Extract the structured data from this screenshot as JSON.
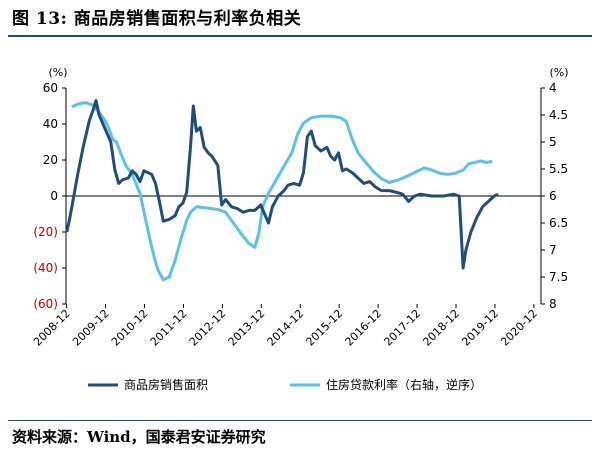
{
  "header": {
    "title": "图 13:  商品房销售面积与利率负相关"
  },
  "footer": {
    "source": "资料来源：Wind，国泰君安证券研究"
  },
  "colors": {
    "series1": "#1f4e79",
    "series2": "#5bc0eb",
    "negative_tick": "#c00000"
  },
  "chart_data": {
    "type": "line",
    "left_axis": {
      "unit": "(%)",
      "ylim": [
        -60,
        60
      ],
      "ticks": [
        "60",
        "40",
        "20",
        "0",
        "(20)",
        "(40)",
        "(60)"
      ],
      "tick_values": [
        60,
        40,
        20,
        0,
        -20,
        -40,
        -60
      ]
    },
    "right_axis": {
      "unit": "(%)",
      "ylim": [
        4,
        8
      ],
      "inverted": true,
      "ticks": [
        "4",
        "4.5",
        "5",
        "5.5",
        "6",
        "6.5",
        "7",
        "7.5",
        "8"
      ],
      "tick_values": [
        4,
        4.5,
        5,
        5.5,
        6,
        6.5,
        7,
        7.5,
        8
      ]
    },
    "x_ticks": [
      "2008-12",
      "2009-12",
      "2010-12",
      "2011-12",
      "2012-12",
      "2013-12",
      "2014-12",
      "2015-12",
      "2016-12",
      "2017-12",
      "2018-12",
      "2019-12",
      "2020-12"
    ],
    "x_range": [
      2008.9,
      2021.1
    ],
    "series": [
      {
        "name": "商品房销售面积",
        "axis": "left",
        "points": [
          [
            2008.92,
            -20
          ],
          [
            2009.0,
            -12
          ],
          [
            2009.1,
            0
          ],
          [
            2009.2,
            12
          ],
          [
            2009.35,
            28
          ],
          [
            2009.5,
            42
          ],
          [
            2009.6,
            48
          ],
          [
            2009.67,
            53
          ],
          [
            2009.75,
            45
          ],
          [
            2009.85,
            40
          ],
          [
            2009.95,
            35
          ],
          [
            2010.05,
            30
          ],
          [
            2010.15,
            15
          ],
          [
            2010.25,
            7
          ],
          [
            2010.35,
            9
          ],
          [
            2010.5,
            10
          ],
          [
            2010.6,
            14
          ],
          [
            2010.7,
            12
          ],
          [
            2010.8,
            8
          ],
          [
            2010.9,
            14
          ],
          [
            2011.0,
            13
          ],
          [
            2011.1,
            12
          ],
          [
            2011.2,
            7
          ],
          [
            2011.3,
            -3
          ],
          [
            2011.4,
            -14
          ],
          [
            2011.55,
            -13
          ],
          [
            2011.7,
            -11
          ],
          [
            2011.8,
            -6
          ],
          [
            2011.9,
            -4
          ],
          [
            2012.0,
            2
          ],
          [
            2012.1,
            28
          ],
          [
            2012.17,
            50
          ],
          [
            2012.25,
            36
          ],
          [
            2012.35,
            38
          ],
          [
            2012.45,
            27
          ],
          [
            2012.55,
            24
          ],
          [
            2012.65,
            22
          ],
          [
            2012.8,
            17
          ],
          [
            2012.9,
            -5
          ],
          [
            2013.0,
            -2
          ],
          [
            2013.15,
            -6
          ],
          [
            2013.3,
            -7
          ],
          [
            2013.45,
            -9
          ],
          [
            2013.6,
            -8
          ],
          [
            2013.75,
            -8
          ],
          [
            2013.9,
            -5
          ],
          [
            2014.0,
            -10
          ],
          [
            2014.1,
            -15
          ],
          [
            2014.2,
            -6
          ],
          [
            2014.35,
            0
          ],
          [
            2014.5,
            3
          ],
          [
            2014.6,
            6
          ],
          [
            2014.75,
            7
          ],
          [
            2014.9,
            6
          ],
          [
            2015.0,
            13
          ],
          [
            2015.1,
            33
          ],
          [
            2015.2,
            36
          ],
          [
            2015.3,
            28
          ],
          [
            2015.45,
            25
          ],
          [
            2015.6,
            27
          ],
          [
            2015.7,
            22
          ],
          [
            2015.8,
            20
          ],
          [
            2015.9,
            24
          ],
          [
            2016.0,
            14
          ],
          [
            2016.1,
            15
          ],
          [
            2016.25,
            13
          ],
          [
            2016.4,
            10
          ],
          [
            2016.55,
            7
          ],
          [
            2016.7,
            8
          ],
          [
            2016.85,
            5
          ],
          [
            2017.0,
            3
          ],
          [
            2017.2,
            3
          ],
          [
            2017.4,
            2
          ],
          [
            2017.55,
            1
          ],
          [
            2017.7,
            -3
          ],
          [
            2017.85,
            0
          ],
          [
            2018.0,
            1
          ],
          [
            2018.3,
            0
          ],
          [
            2018.6,
            0
          ],
          [
            2018.85,
            1
          ],
          [
            2019.0,
            0
          ],
          [
            2019.1,
            -40
          ],
          [
            2019.17,
            -30
          ],
          [
            2019.3,
            -20
          ],
          [
            2019.45,
            -12
          ],
          [
            2019.6,
            -6
          ],
          [
            2019.75,
            -3
          ],
          [
            2019.9,
            0
          ],
          [
            2020.0,
            1
          ]
        ]
      },
      {
        "name": "住房贷款利率（右轴，逆序）",
        "axis": "right",
        "points": [
          [
            2009.05,
            4.35
          ],
          [
            2009.2,
            4.3
          ],
          [
            2009.4,
            4.27
          ],
          [
            2009.6,
            4.32
          ],
          [
            2009.75,
            4.45
          ],
          [
            2009.9,
            4.6
          ],
          [
            2010.0,
            4.75
          ],
          [
            2010.1,
            4.95
          ],
          [
            2010.2,
            5.0
          ],
          [
            2010.3,
            5.2
          ],
          [
            2010.45,
            5.45
          ],
          [
            2010.6,
            5.6
          ],
          [
            2010.8,
            5.95
          ],
          [
            2010.95,
            6.45
          ],
          [
            2011.1,
            6.95
          ],
          [
            2011.25,
            7.35
          ],
          [
            2011.4,
            7.55
          ],
          [
            2011.55,
            7.5
          ],
          [
            2011.7,
            7.2
          ],
          [
            2011.85,
            6.8
          ],
          [
            2012.0,
            6.45
          ],
          [
            2012.1,
            6.3
          ],
          [
            2012.25,
            6.2
          ],
          [
            2012.5,
            6.22
          ],
          [
            2012.8,
            6.25
          ],
          [
            2013.0,
            6.3
          ],
          [
            2013.2,
            6.5
          ],
          [
            2013.4,
            6.7
          ],
          [
            2013.6,
            6.88
          ],
          [
            2013.75,
            6.95
          ],
          [
            2013.85,
            6.7
          ],
          [
            2013.95,
            6.2
          ],
          [
            2014.1,
            5.95
          ],
          [
            2014.3,
            5.7
          ],
          [
            2014.5,
            5.45
          ],
          [
            2014.7,
            5.2
          ],
          [
            2014.85,
            4.85
          ],
          [
            2015.0,
            4.65
          ],
          [
            2015.2,
            4.55
          ],
          [
            2015.45,
            4.52
          ],
          [
            2015.7,
            4.52
          ],
          [
            2015.95,
            4.55
          ],
          [
            2016.1,
            4.62
          ],
          [
            2016.25,
            4.95
          ],
          [
            2016.4,
            5.2
          ],
          [
            2016.6,
            5.38
          ],
          [
            2016.8,
            5.55
          ],
          [
            2017.0,
            5.68
          ],
          [
            2017.2,
            5.75
          ],
          [
            2017.45,
            5.7
          ],
          [
            2017.7,
            5.62
          ],
          [
            2017.9,
            5.55
          ],
          [
            2018.1,
            5.48
          ],
          [
            2018.3,
            5.52
          ],
          [
            2018.5,
            5.58
          ],
          [
            2018.7,
            5.6
          ],
          [
            2018.9,
            5.58
          ],
          [
            2019.1,
            5.52
          ],
          [
            2019.25,
            5.4
          ],
          [
            2019.4,
            5.38
          ],
          [
            2019.55,
            5.35
          ],
          [
            2019.7,
            5.38
          ],
          [
            2019.85,
            5.36
          ]
        ]
      }
    ],
    "legend": {
      "placement": "bottom",
      "entries": [
        "商品房销售面积",
        "住房贷款利率（右轴，逆序）"
      ]
    }
  }
}
